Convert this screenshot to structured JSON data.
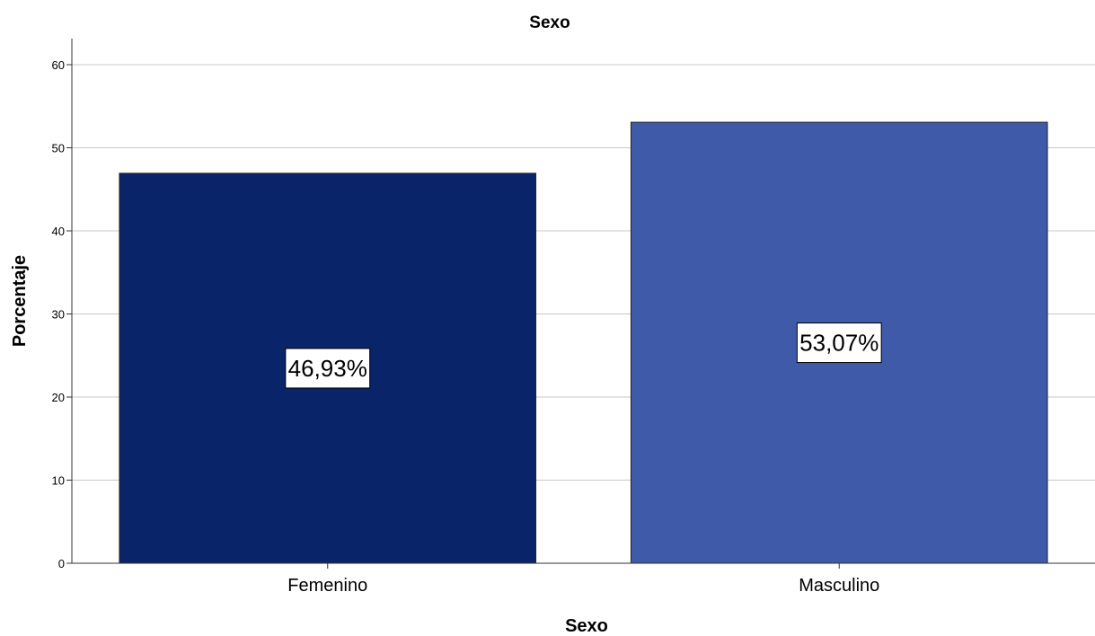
{
  "chart_data": {
    "type": "bar",
    "title": "Sexo",
    "xlabel": "Sexo",
    "ylabel": "Porcentaje",
    "categories": [
      "Femenino",
      "Masculino"
    ],
    "values": [
      46.93,
      53.07
    ],
    "data_labels": [
      "46,93%",
      "53,07%"
    ],
    "colors": [
      "#0a246a",
      "#3f5aa8"
    ],
    "ylim": [
      0,
      63
    ],
    "yticks": [
      0,
      10,
      20,
      30,
      40,
      50,
      60
    ],
    "grid": true,
    "legend": "none"
  }
}
